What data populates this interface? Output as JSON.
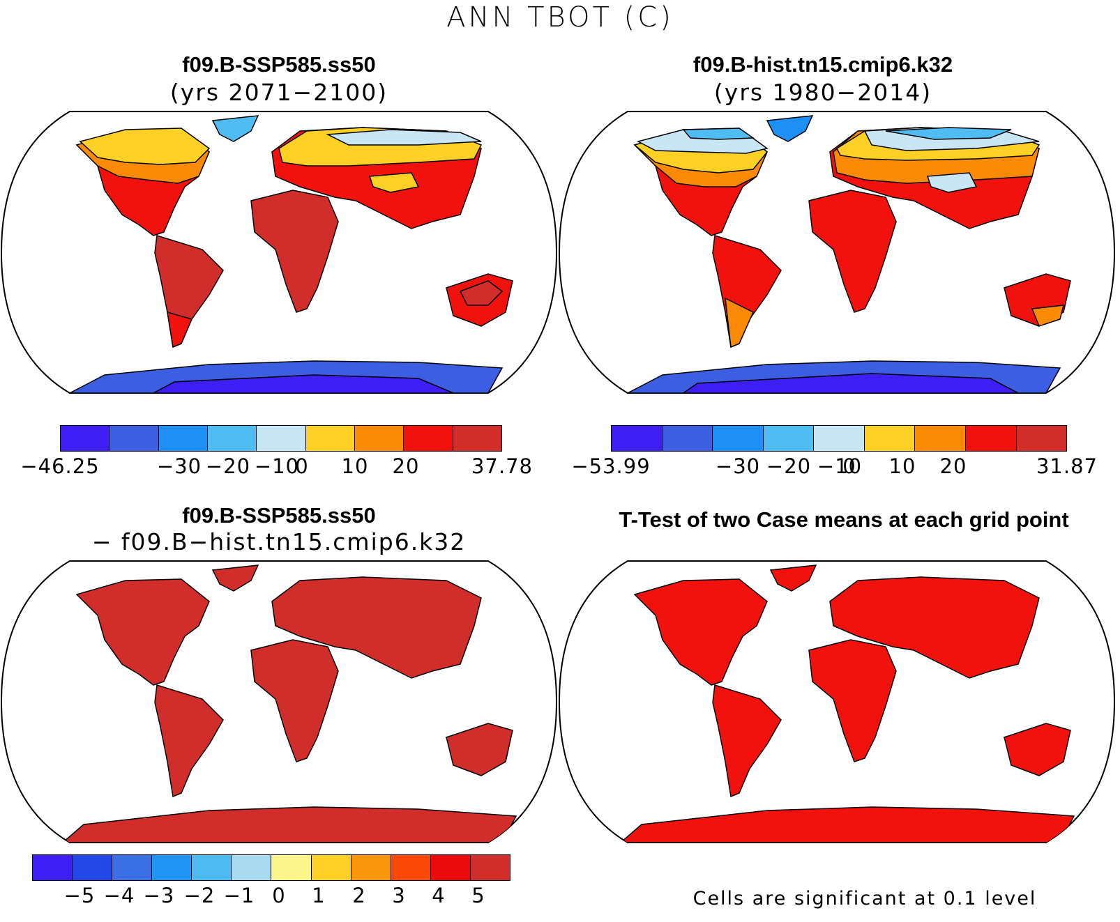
{
  "title": "ANN TBOT (C)",
  "panels": {
    "future": {
      "title": "f09.B-SSP585.ss50",
      "subtitle": "(yrs 2071−2100)",
      "colorbar": {
        "colors": [
          "#3f1ef5",
          "#3b5fe0",
          "#1e90f5",
          "#50bdf2",
          "#c9e6f5",
          "#fcd025",
          "#fb8a07",
          "#f2120d",
          "#d12d2b"
        ],
        "labels": [
          "−46.25",
          "−30",
          "−20",
          "−10",
          "0",
          "10",
          "20",
          "37.78"
        ]
      }
    },
    "historical": {
      "title": "f09.B-hist.tn15.cmip6.k32",
      "subtitle": "(yrs 1980−2014)",
      "colorbar": {
        "colors": [
          "#3f1ef5",
          "#3b5fe0",
          "#1e90f5",
          "#50bdf2",
          "#c9e6f5",
          "#fcd025",
          "#fb8a07",
          "#f2120d",
          "#d12d2b"
        ],
        "labels": [
          "−53.99",
          "−30",
          "−20",
          "−10",
          "0",
          "10",
          "20",
          "31.87"
        ]
      }
    },
    "difference": {
      "title": "f09.B-SSP585.ss50",
      "subtitle": "− f09.B−hist.tn15.cmip6.k32",
      "colorbar": {
        "colors": [
          "#3f1ef5",
          "#2448e8",
          "#3a6fe6",
          "#1e95f5",
          "#4dbaf0",
          "#a8dbf2",
          "#fbf58c",
          "#fcd025",
          "#fb950b",
          "#fb4a08",
          "#ea0c0c",
          "#d12d2b"
        ],
        "labels": [
          "−5",
          "−4",
          "−3",
          "−2",
          "−1",
          "0",
          "1",
          "2",
          "3",
          "4",
          "5"
        ]
      }
    },
    "ttest": {
      "title": "T-Test of two Case means at each grid point",
      "note": "Cells are significant at 0.1 level"
    }
  }
}
